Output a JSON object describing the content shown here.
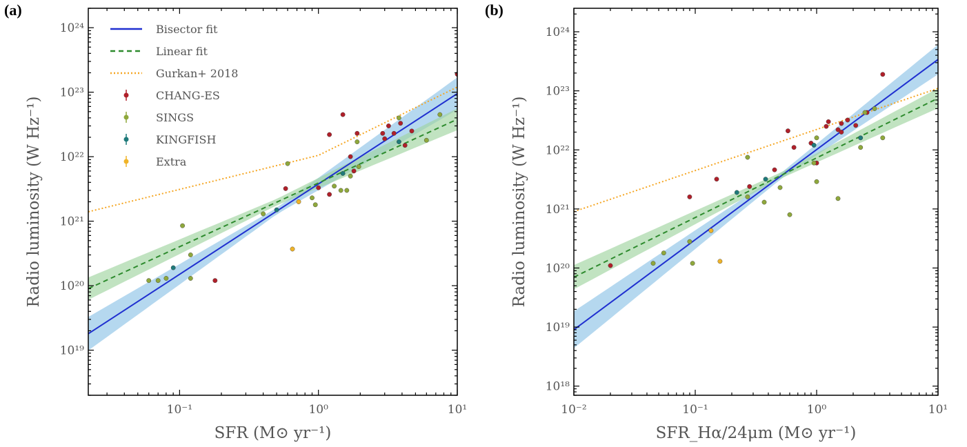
{
  "panels": [
    {
      "label": "(a)"
    },
    {
      "label": "(b)"
    }
  ],
  "chart_data": [
    {
      "type": "scatter",
      "title": "",
      "xlabel": "SFR (M⊙ yr⁻¹)",
      "ylabel": "Radio luminosity (W Hz⁻¹)",
      "xscale": "log",
      "yscale": "log",
      "xlim": [
        0.022,
        10
      ],
      "ylim": [
        2e+18,
        2e+24
      ],
      "xticks": [
        {
          "v": 0.1,
          "t": "10⁻¹"
        },
        {
          "v": 1,
          "t": "10⁰"
        },
        {
          "v": 10,
          "t": "10¹"
        }
      ],
      "yticks": [
        {
          "v": 1e+19,
          "t": "10¹⁹"
        },
        {
          "v": 1e+20,
          "t": "10²⁰"
        },
        {
          "v": 1e+21,
          "t": "10²¹"
        },
        {
          "v": 1e+22,
          "t": "10²²"
        },
        {
          "v": 1e+23,
          "t": "10²³"
        },
        {
          "v": 1e+24,
          "t": "10²⁴"
        }
      ],
      "legend_position": "top-left",
      "lines": [
        {
          "name": "Bisector fit",
          "color": "#1f2fd0",
          "style": "solid",
          "x": [
            0.022,
            10
          ],
          "y": [
            1.8e+19,
            9.5e+22
          ],
          "band_color": "#8ec3e6"
        },
        {
          "name": "Linear fit",
          "color": "#2e8b2e",
          "style": "dashed",
          "x": [
            0.022,
            10
          ],
          "y": [
            9e+19,
            3.8e+22
          ],
          "band_color": "#9fd49f"
        },
        {
          "name": "Gurkan+ 2018",
          "color": "#f5a623",
          "style": "dotted",
          "x": [
            0.022,
            1,
            10
          ],
          "y": [
            1.4e+21,
            1.05e+22,
            1.2e+23
          ]
        }
      ],
      "series": [
        {
          "name": "CHANG-ES",
          "color": "#b0202a",
          "points": [
            [
              0.18,
              1.2e+20
            ],
            [
              0.58,
              3.2e+21
            ],
            [
              1.2,
              2.2e+22
            ],
            [
              1.5,
              4.5e+22
            ],
            [
              1.8,
              6e+21
            ],
            [
              1.9,
              2.3e+22
            ],
            [
              1.0,
              3.3e+21
            ],
            [
              1.2,
              2.6e+21
            ],
            [
              2.9,
              2.3e+22
            ],
            [
              3.0,
              1.9e+22
            ],
            [
              3.2,
              3e+22
            ],
            [
              3.5,
              2.3e+22
            ],
            [
              3.9,
              3.3e+22
            ],
            [
              4.2,
              1.5e+22
            ],
            [
              4.7,
              2.5e+22
            ],
            [
              1.7,
              1e+22
            ],
            [
              10,
              1.9e+23
            ]
          ]
        },
        {
          "name": "SINGS",
          "color": "#8fa83c",
          "points": [
            [
              0.06,
              1.2e+20
            ],
            [
              0.07,
              1.2e+20
            ],
            [
              0.08,
              1.3e+20
            ],
            [
              0.105,
              8.5e+20
            ],
            [
              0.12,
              3e+20
            ],
            [
              0.12,
              1.3e+20
            ],
            [
              0.4,
              1.3e+21
            ],
            [
              0.6,
              7.8e+21
            ],
            [
              0.9,
              2.3e+21
            ],
            [
              0.95,
              1.8e+21
            ],
            [
              1.3,
              3.5e+21
            ],
            [
              1.45,
              3e+21
            ],
            [
              1.6,
              3e+21
            ],
            [
              1.7,
              5e+21
            ],
            [
              1.9,
              1.7e+22
            ],
            [
              1.95,
              7e+21
            ],
            [
              3.8,
              4e+22
            ],
            [
              6.0,
              1.8e+22
            ],
            [
              7.5,
              4.5e+22
            ]
          ]
        },
        {
          "name": "KINGFISH",
          "color": "#1f7a7a",
          "points": [
            [
              0.09,
              1.9e+20
            ],
            [
              0.5,
              1.5e+21
            ],
            [
              1.5,
              5.5e+21
            ],
            [
              3.8,
              1.7e+22
            ]
          ]
        },
        {
          "name": "Extra",
          "color": "#f0b429",
          "points": [
            [
              0.65,
              3.7e+20
            ],
            [
              0.72,
              2e+21
            ]
          ]
        }
      ]
    },
    {
      "type": "scatter",
      "title": "",
      "xlabel": "SFR_Hα/24μm (M⊙ yr⁻¹)",
      "ylabel": "Radio luminosity (W Hz⁻¹)",
      "xscale": "log",
      "yscale": "log",
      "xlim": [
        0.01,
        10
      ],
      "ylim": [
        7e+17,
        2.5e+24
      ],
      "xticks": [
        {
          "v": 0.01,
          "t": "10⁻²"
        },
        {
          "v": 0.1,
          "t": "10⁻¹"
        },
        {
          "v": 1,
          "t": "10⁰"
        },
        {
          "v": 10,
          "t": "10¹"
        }
      ],
      "yticks": [
        {
          "v": 1e+18,
          "t": "10¹⁸"
        },
        {
          "v": 1e+19,
          "t": "10¹⁹"
        },
        {
          "v": 1e+20,
          "t": "10²⁰"
        },
        {
          "v": 1e+21,
          "t": "10²¹"
        },
        {
          "v": 1e+22,
          "t": "10²²"
        },
        {
          "v": 1e+23,
          "t": "10²³"
        },
        {
          "v": 1e+24,
          "t": "10²⁴"
        }
      ],
      "legend_position": "none",
      "lines": [
        {
          "name": "Bisector fit",
          "color": "#1f2fd0",
          "style": "solid",
          "x": [
            0.01,
            10
          ],
          "y": [
            9e+18,
            3.4e+23
          ],
          "band_color": "#8ec3e6"
        },
        {
          "name": "Linear fit",
          "color": "#2e8b2e",
          "style": "dashed",
          "x": [
            0.01,
            10
          ],
          "y": [
            7e+19,
            7.5e+22
          ],
          "band_color": "#9fd49f"
        },
        {
          "name": "Gurkan+ 2018",
          "color": "#f5a623",
          "style": "dotted",
          "x": [
            0.01,
            10
          ],
          "y": [
            9e+20,
            1.1e+23
          ]
        }
      ],
      "series": [
        {
          "name": "CHANG-ES",
          "color": "#b0202a",
          "points": [
            [
              0.02,
              1.1e+20
            ],
            [
              0.09,
              1.6e+21
            ],
            [
              0.15,
              3.2e+21
            ],
            [
              0.28,
              2.4e+21
            ],
            [
              0.45,
              4.6e+21
            ],
            [
              0.58,
              2.1e+22
            ],
            [
              0.65,
              1.1e+22
            ],
            [
              0.9,
              1.3e+22
            ],
            [
              1.2,
              2.5e+22
            ],
            [
              1.25,
              3e+22
            ],
            [
              1.5,
              2.2e+22
            ],
            [
              1.6,
              2.8e+22
            ],
            [
              1.8,
              3.2e+22
            ],
            [
              2.1,
              2.6e+22
            ],
            [
              2.6,
              4.3e+22
            ],
            [
              3.5,
              1.9e+23
            ],
            [
              1.0,
              6e+21
            ],
            [
              1.6,
              2e+22
            ]
          ]
        },
        {
          "name": "SINGS",
          "color": "#8fa83c",
          "points": [
            [
              0.045,
              1.2e+20
            ],
            [
              0.055,
              1.8e+20
            ],
            [
              0.09,
              2.8e+20
            ],
            [
              0.095,
              1.2e+20
            ],
            [
              0.27,
              7.5e+21
            ],
            [
              0.27,
              1.6e+21
            ],
            [
              0.37,
              1.3e+21
            ],
            [
              0.5,
              2.3e+21
            ],
            [
              0.6,
              8e+20
            ],
            [
              0.95,
              6e+21
            ],
            [
              1.0,
              2.9e+21
            ],
            [
              1.0,
              1.6e+22
            ],
            [
              1.5,
              1.5e+21
            ],
            [
              2.3,
              1.1e+22
            ],
            [
              2.5,
              4.3e+22
            ],
            [
              3.5,
              1.6e+22
            ],
            [
              3.0,
              5e+22
            ]
          ]
        },
        {
          "name": "KINGFISH",
          "color": "#1f7a7a",
          "points": [
            [
              0.22,
              1.9e+21
            ],
            [
              0.38,
              3.2e+21
            ],
            [
              0.95,
              1.2e+22
            ],
            [
              2.3,
              1.6e+22
            ]
          ]
        },
        {
          "name": "Extra",
          "color": "#f0b429",
          "points": [
            [
              0.135,
              4.3e+20
            ],
            [
              0.16,
              1.3e+20
            ]
          ]
        }
      ]
    }
  ]
}
